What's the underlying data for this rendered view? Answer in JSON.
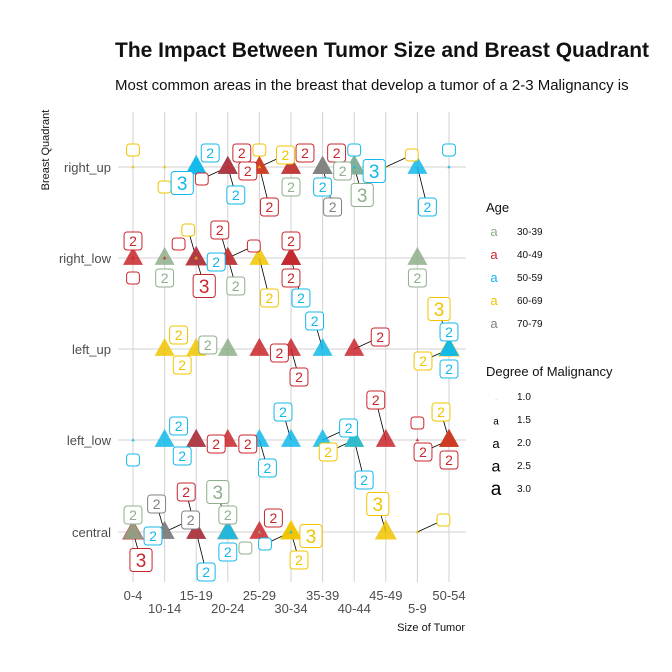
{
  "chart_data": {
    "type": "scatter",
    "title": "The Impact Between Tumor Size and Breast Quadrant",
    "subtitle": "Most common areas in the breast that develop a tumor of a 2-3 Malignancy is",
    "xlabel": "Size of Tumor",
    "ylabel": "Breast Quadrant",
    "x_categories": [
      "0-4",
      "10-14",
      "15-19",
      "20-24",
      "25-29",
      "30-34",
      "35-39",
      "40-44",
      "45-49",
      "5-9",
      "50-54"
    ],
    "y_categories": [
      "central",
      "left_low",
      "left_up",
      "right_low",
      "right_up"
    ],
    "grid": true,
    "legend_position": "right",
    "legends": [
      {
        "title": "Age",
        "entries": [
          {
            "label": "30-39",
            "color": "#8fae8b"
          },
          {
            "label": "40-49",
            "color": "#c8262c"
          },
          {
            "label": "50-59",
            "color": "#11b8ea"
          },
          {
            "label": "60-69",
            "color": "#f0c400"
          },
          {
            "label": "70-79",
            "color": "#808080"
          }
        ]
      },
      {
        "title": "Degree of Malignancy",
        "entries": [
          {
            "label": "1.0",
            "value": 1.0
          },
          {
            "label": "1.5",
            "value": 1.5
          },
          {
            "label": "2.0",
            "value": 2.0
          },
          {
            "label": "2.5",
            "value": 2.5
          },
          {
            "label": "3.0",
            "value": 3.0
          }
        ]
      }
    ],
    "points": [
      {
        "x": "0-4",
        "y": "right_up",
        "age": "60-69",
        "malignancy": 1
      },
      {
        "x": "10-14",
        "y": "right_up",
        "age": "60-69",
        "malignancy": 1
      },
      {
        "x": "15-19",
        "y": "right_up",
        "age": "50-59",
        "malignancy": 2
      },
      {
        "x": "15-19",
        "y": "right_up",
        "age": "50-59",
        "malignancy": 3
      },
      {
        "x": "20-24",
        "y": "right_up",
        "age": "40-49",
        "malignancy": 2
      },
      {
        "x": "20-24",
        "y": "right_up",
        "age": "50-59",
        "malignancy": 2
      },
      {
        "x": "20-24",
        "y": "right_up",
        "age": "40-49",
        "malignancy": 2
      },
      {
        "x": "20-24",
        "y": "right_up",
        "age": "40-49",
        "malignancy": 1
      },
      {
        "x": "25-29",
        "y": "right_up",
        "age": "60-69",
        "malignancy": 2
      },
      {
        "x": "25-29",
        "y": "right_up",
        "age": "40-49",
        "malignancy": 2
      },
      {
        "x": "25-29",
        "y": "right_up",
        "age": "60-69",
        "malignancy": 1
      },
      {
        "x": "30-34",
        "y": "right_up",
        "age": "30-39",
        "malignancy": 2
      },
      {
        "x": "30-34",
        "y": "right_up",
        "age": "40-49",
        "malignancy": 2
      },
      {
        "x": "35-39",
        "y": "right_up",
        "age": "50-59",
        "malignancy": 2
      },
      {
        "x": "35-39",
        "y": "right_up",
        "age": "40-49",
        "malignancy": 2
      },
      {
        "x": "35-39",
        "y": "right_up",
        "age": "30-39",
        "malignancy": 2
      },
      {
        "x": "35-39",
        "y": "right_up",
        "age": "70-79",
        "malignancy": 2
      },
      {
        "x": "40-44",
        "y": "right_up",
        "age": "50-59",
        "malignancy": 3
      },
      {
        "x": "40-44",
        "y": "right_up",
        "age": "30-39",
        "malignancy": 3
      },
      {
        "x": "40-44",
        "y": "right_up",
        "age": "50-59",
        "malignancy": 1
      },
      {
        "x": "45-49",
        "y": "right_up",
        "age": "60-69",
        "malignancy": 1
      },
      {
        "x": "5-9",
        "y": "right_up",
        "age": "50-59",
        "malignancy": 2
      },
      {
        "x": "50-54",
        "y": "right_up",
        "age": "50-59",
        "malignancy": 1
      },
      {
        "x": "0-4",
        "y": "right_low",
        "age": "40-49",
        "malignancy": 2
      },
      {
        "x": "0-4",
        "y": "right_low",
        "age": "40-49",
        "malignancy": 1
      },
      {
        "x": "10-14",
        "y": "right_low",
        "age": "30-39",
        "malignancy": 2
      },
      {
        "x": "10-14",
        "y": "right_low",
        "age": "40-49",
        "malignancy": 1
      },
      {
        "x": "15-19",
        "y": "right_low",
        "age": "50-59",
        "malignancy": 2
      },
      {
        "x": "15-19",
        "y": "right_low",
        "age": "40-49",
        "malignancy": 3
      },
      {
        "x": "15-19",
        "y": "right_low",
        "age": "60-69",
        "malignancy": 1
      },
      {
        "x": "20-24",
        "y": "right_low",
        "age": "30-39",
        "malignancy": 2
      },
      {
        "x": "20-24",
        "y": "right_low",
        "age": "40-49",
        "malignancy": 2
      },
      {
        "x": "20-24",
        "y": "right_low",
        "age": "40-49",
        "malignancy": 1
      },
      {
        "x": "25-29",
        "y": "right_low",
        "age": "60-69",
        "malignancy": 2
      },
      {
        "x": "30-34",
        "y": "right_low",
        "age": "50-59",
        "malignancy": 2
      },
      {
        "x": "30-34",
        "y": "right_low",
        "age": "40-49",
        "malignancy": 2
      },
      {
        "x": "30-34",
        "y": "right_low",
        "age": "40-49",
        "malignancy": 2
      },
      {
        "x": "5-9",
        "y": "right_low",
        "age": "30-39",
        "malignancy": 2
      },
      {
        "x": "10-14",
        "y": "left_up",
        "age": "60-69",
        "malignancy": 2
      },
      {
        "x": "15-19",
        "y": "left_up",
        "age": "60-69",
        "malignancy": 2
      },
      {
        "x": "20-24",
        "y": "left_up",
        "age": "30-39",
        "malignancy": 2
      },
      {
        "x": "25-29",
        "y": "left_up",
        "age": "40-49",
        "malignancy": 2
      },
      {
        "x": "30-34",
        "y": "left_up",
        "age": "40-49",
        "malignancy": 2
      },
      {
        "x": "35-39",
        "y": "left_up",
        "age": "50-59",
        "malignancy": 2
      },
      {
        "x": "40-44",
        "y": "left_up",
        "age": "40-49",
        "malignancy": 2
      },
      {
        "x": "50-54",
        "y": "left_up",
        "age": "60-69",
        "malignancy": 2
      },
      {
        "x": "50-54",
        "y": "left_up",
        "age": "60-69",
        "malignancy": 3
      },
      {
        "x": "50-54",
        "y": "left_up",
        "age": "50-59",
        "malignancy": 2
      },
      {
        "x": "50-54",
        "y": "left_up",
        "age": "50-59",
        "malignancy": 2
      },
      {
        "x": "0-4",
        "y": "left_low",
        "age": "50-59",
        "malignancy": 1
      },
      {
        "x": "10-14",
        "y": "left_low",
        "age": "50-59",
        "malignancy": 2
      },
      {
        "x": "15-19",
        "y": "left_low",
        "age": "50-59",
        "malignancy": 2
      },
      {
        "x": "15-19",
        "y": "left_low",
        "age": "40-49",
        "malignancy": 2
      },
      {
        "x": "20-24",
        "y": "left_low",
        "age": "40-49",
        "malignancy": 2
      },
      {
        "x": "25-29",
        "y": "left_low",
        "age": "50-59",
        "malignancy": 2
      },
      {
        "x": "30-34",
        "y": "left_low",
        "age": "50-59",
        "malignancy": 2
      },
      {
        "x": "35-39",
        "y": "left_low",
        "age": "50-59",
        "malignancy": 2
      },
      {
        "x": "40-44",
        "y": "left_low",
        "age": "60-69",
        "malignancy": 2
      },
      {
        "x": "40-44",
        "y": "left_low",
        "age": "50-59",
        "malignancy": 2
      },
      {
        "x": "45-49",
        "y": "left_low",
        "age": "40-49",
        "malignancy": 2
      },
      {
        "x": "5-9",
        "y": "left_low",
        "age": "40-49",
        "malignancy": 1
      },
      {
        "x": "50-54",
        "y": "left_low",
        "age": "40-49",
        "malignancy": 2
      },
      {
        "x": "50-54",
        "y": "left_low",
        "age": "60-69",
        "malignancy": 2
      },
      {
        "x": "50-54",
        "y": "left_low",
        "age": "40-49",
        "malignancy": 2
      },
      {
        "x": "0-4",
        "y": "central",
        "age": "50-59",
        "malignancy": 2
      },
      {
        "x": "0-4",
        "y": "central",
        "age": "40-49",
        "malignancy": 3
      },
      {
        "x": "0-4",
        "y": "central",
        "age": "30-39",
        "malignancy": 2
      },
      {
        "x": "10-14",
        "y": "central",
        "age": "70-79",
        "malignancy": 2
      },
      {
        "x": "10-14",
        "y": "central",
        "age": "70-79",
        "malignancy": 2
      },
      {
        "x": "15-19",
        "y": "central",
        "age": "50-59",
        "malignancy": 2
      },
      {
        "x": "15-19",
        "y": "central",
        "age": "40-49",
        "malignancy": 2
      },
      {
        "x": "20-24",
        "y": "central",
        "age": "30-39",
        "malignancy": 3
      },
      {
        "x": "20-24",
        "y": "central",
        "age": "30-39",
        "malignancy": 2
      },
      {
        "x": "20-24",
        "y": "central",
        "age": "50-59",
        "malignancy": 2
      },
      {
        "x": "25-29",
        "y": "central",
        "age": "40-49",
        "malignancy": 2
      },
      {
        "x": "25-29",
        "y": "central",
        "age": "30-39",
        "malignancy": 1
      },
      {
        "x": "30-34",
        "y": "central",
        "age": "60-69",
        "malignancy": 3
      },
      {
        "x": "30-34",
        "y": "central",
        "age": "60-69",
        "malignancy": 2
      },
      {
        "x": "30-34",
        "y": "central",
        "age": "50-59",
        "malignancy": 1
      },
      {
        "x": "45-49",
        "y": "central",
        "age": "60-69",
        "malignancy": 3
      },
      {
        "x": "5-9",
        "y": "central",
        "age": "60-69",
        "malignancy": 1
      }
    ]
  }
}
